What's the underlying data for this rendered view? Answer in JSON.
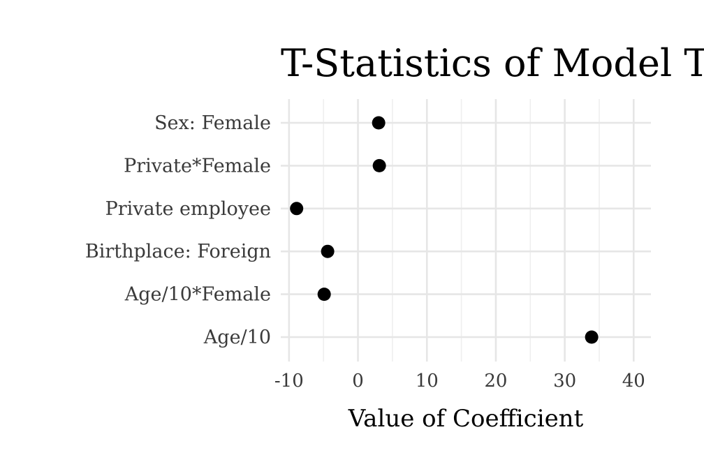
{
  "chart_data": {
    "type": "scatter",
    "title": "T-Statistics of Model T",
    "xlabel": "Value of Coefficient",
    "ylabel": "",
    "categories": [
      "Sex: Female",
      "Private*Female",
      "Private employee",
      "Birthplace: Foreign",
      "Age/10*Female",
      "Age/10"
    ],
    "values": [
      3.0,
      3.1,
      -8.9,
      -4.4,
      -4.9,
      33.9
    ],
    "xlim": [
      -11.2,
      42.5
    ],
    "xticks": [
      -10,
      0,
      10,
      20,
      30,
      40
    ],
    "xtick_labels": [
      "-10",
      "0",
      "10",
      "20",
      "30",
      "40"
    ],
    "grid": true,
    "legend": "none",
    "colors": {
      "point": "#000000",
      "grid": "#e6e6e6",
      "text": "#3a3a3a"
    }
  }
}
